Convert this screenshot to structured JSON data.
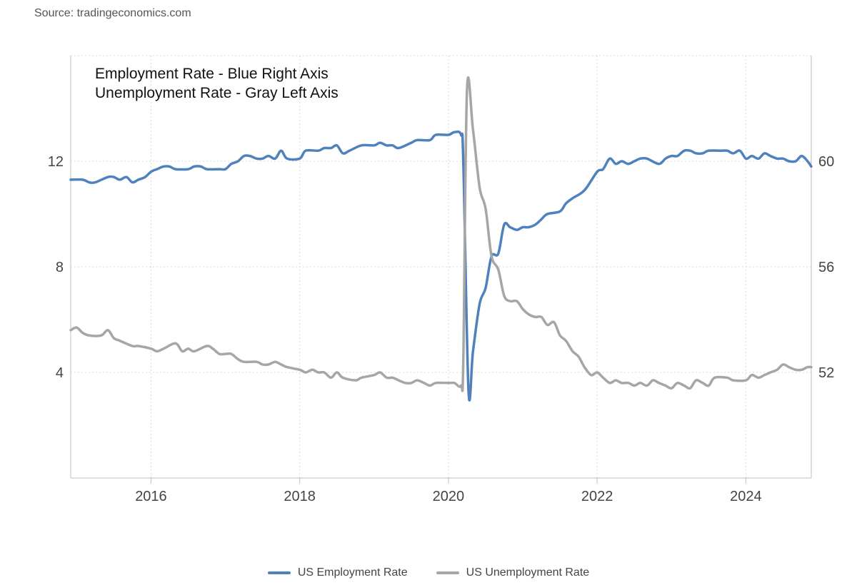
{
  "source": "Source: tradingeconomics.com",
  "colors": {
    "employment": "#4f81bd",
    "unemployment": "#a6a6a6",
    "grid": "#d9d9d9",
    "axis": "#bfbfbf"
  },
  "chart_data": {
    "type": "line",
    "annotations": [
      "Employment Rate - Blue Right Axis",
      "Unemployment Rate - Gray Left Axis"
    ],
    "x_ticks": [
      "2016",
      "2018",
      "2020",
      "2022",
      "2024"
    ],
    "x_range": [
      2014.92,
      2024.88
    ],
    "left_axis": {
      "ticks": [
        "4",
        "8",
        "12"
      ],
      "range": [
        0,
        16
      ]
    },
    "right_axis": {
      "ticks": [
        "52",
        "56",
        "60"
      ],
      "range": [
        48,
        64
      ]
    },
    "grid": true,
    "legend_position": "bottom",
    "series": [
      {
        "name": "US Employment Rate",
        "axis": "right",
        "color": "#4f81bd",
        "points": [
          [
            2014.92,
            59.3
          ],
          [
            2015.08,
            59.3
          ],
          [
            2015.17,
            59.2
          ],
          [
            2015.25,
            59.2
          ],
          [
            2015.42,
            59.4
          ],
          [
            2015.5,
            59.4
          ],
          [
            2015.58,
            59.3
          ],
          [
            2015.67,
            59.4
          ],
          [
            2015.75,
            59.2
          ],
          [
            2015.83,
            59.3
          ],
          [
            2015.92,
            59.4
          ],
          [
            2016.0,
            59.6
          ],
          [
            2016.08,
            59.7
          ],
          [
            2016.17,
            59.8
          ],
          [
            2016.25,
            59.8
          ],
          [
            2016.33,
            59.7
          ],
          [
            2016.5,
            59.7
          ],
          [
            2016.58,
            59.8
          ],
          [
            2016.67,
            59.8
          ],
          [
            2016.75,
            59.7
          ],
          [
            2016.92,
            59.7
          ],
          [
            2017.0,
            59.7
          ],
          [
            2017.08,
            59.9
          ],
          [
            2017.17,
            60.0
          ],
          [
            2017.25,
            60.2
          ],
          [
            2017.33,
            60.2
          ],
          [
            2017.42,
            60.1
          ],
          [
            2017.5,
            60.1
          ],
          [
            2017.58,
            60.2
          ],
          [
            2017.67,
            60.1
          ],
          [
            2017.75,
            60.4
          ],
          [
            2017.83,
            60.1
          ],
          [
            2018.0,
            60.1
          ],
          [
            2018.08,
            60.4
          ],
          [
            2018.25,
            60.4
          ],
          [
            2018.33,
            60.5
          ],
          [
            2018.42,
            60.5
          ],
          [
            2018.5,
            60.6
          ],
          [
            2018.58,
            60.3
          ],
          [
            2018.67,
            60.4
          ],
          [
            2018.83,
            60.6
          ],
          [
            2019.0,
            60.6
          ],
          [
            2019.08,
            60.7
          ],
          [
            2019.17,
            60.6
          ],
          [
            2019.25,
            60.6
          ],
          [
            2019.33,
            60.5
          ],
          [
            2019.5,
            60.7
          ],
          [
            2019.58,
            60.8
          ],
          [
            2019.75,
            60.8
          ],
          [
            2019.83,
            61.0
          ],
          [
            2020.0,
            61.0
          ],
          [
            2020.08,
            61.1
          ],
          [
            2020.17,
            61.0
          ],
          [
            2020.2,
            60.0
          ],
          [
            2020.27,
            51.3
          ],
          [
            2020.33,
            52.8
          ],
          [
            2020.42,
            54.6
          ],
          [
            2020.5,
            55.2
          ],
          [
            2020.58,
            56.4
          ],
          [
            2020.67,
            56.5
          ],
          [
            2020.75,
            57.6
          ],
          [
            2020.83,
            57.5
          ],
          [
            2020.92,
            57.4
          ],
          [
            2021.0,
            57.5
          ],
          [
            2021.08,
            57.5
          ],
          [
            2021.17,
            57.6
          ],
          [
            2021.25,
            57.8
          ],
          [
            2021.33,
            58.0
          ],
          [
            2021.5,
            58.1
          ],
          [
            2021.58,
            58.4
          ],
          [
            2021.67,
            58.6
          ],
          [
            2021.83,
            58.9
          ],
          [
            2022.0,
            59.6
          ],
          [
            2022.08,
            59.7
          ],
          [
            2022.17,
            60.1
          ],
          [
            2022.25,
            59.9
          ],
          [
            2022.33,
            60.0
          ],
          [
            2022.42,
            59.9
          ],
          [
            2022.5,
            60.0
          ],
          [
            2022.58,
            60.1
          ],
          [
            2022.67,
            60.1
          ],
          [
            2022.83,
            59.9
          ],
          [
            2022.92,
            60.1
          ],
          [
            2023.0,
            60.2
          ],
          [
            2023.08,
            60.2
          ],
          [
            2023.17,
            60.4
          ],
          [
            2023.25,
            60.4
          ],
          [
            2023.33,
            60.3
          ],
          [
            2023.42,
            60.3
          ],
          [
            2023.5,
            60.4
          ],
          [
            2023.67,
            60.4
          ],
          [
            2023.75,
            60.4
          ],
          [
            2023.83,
            60.3
          ],
          [
            2023.92,
            60.4
          ],
          [
            2024.0,
            60.1
          ],
          [
            2024.08,
            60.2
          ],
          [
            2024.17,
            60.1
          ],
          [
            2024.25,
            60.3
          ],
          [
            2024.33,
            60.2
          ],
          [
            2024.42,
            60.1
          ],
          [
            2024.5,
            60.1
          ],
          [
            2024.58,
            60.0
          ],
          [
            2024.67,
            60.0
          ],
          [
            2024.75,
            60.2
          ],
          [
            2024.83,
            60.0
          ],
          [
            2024.88,
            59.8
          ]
        ]
      },
      {
        "name": "US Unemployment Rate",
        "axis": "left",
        "color": "#a6a6a6",
        "points": [
          [
            2014.92,
            5.6
          ],
          [
            2015.0,
            5.7
          ],
          [
            2015.08,
            5.5
          ],
          [
            2015.17,
            5.4
          ],
          [
            2015.33,
            5.4
          ],
          [
            2015.42,
            5.6
          ],
          [
            2015.5,
            5.3
          ],
          [
            2015.58,
            5.2
          ],
          [
            2015.75,
            5.0
          ],
          [
            2015.83,
            5.0
          ],
          [
            2016.0,
            4.9
          ],
          [
            2016.08,
            4.8
          ],
          [
            2016.17,
            4.9
          ],
          [
            2016.33,
            5.1
          ],
          [
            2016.42,
            4.8
          ],
          [
            2016.5,
            4.9
          ],
          [
            2016.58,
            4.8
          ],
          [
            2016.75,
            5.0
          ],
          [
            2016.83,
            4.9
          ],
          [
            2016.92,
            4.7
          ],
          [
            2017.0,
            4.7
          ],
          [
            2017.08,
            4.7
          ],
          [
            2017.17,
            4.5
          ],
          [
            2017.25,
            4.4
          ],
          [
            2017.42,
            4.4
          ],
          [
            2017.5,
            4.3
          ],
          [
            2017.58,
            4.3
          ],
          [
            2017.67,
            4.4
          ],
          [
            2017.75,
            4.3
          ],
          [
            2017.83,
            4.2
          ],
          [
            2018.0,
            4.1
          ],
          [
            2018.08,
            4.0
          ],
          [
            2018.17,
            4.1
          ],
          [
            2018.25,
            4.0
          ],
          [
            2018.33,
            4.0
          ],
          [
            2018.42,
            3.8
          ],
          [
            2018.5,
            4.0
          ],
          [
            2018.58,
            3.8
          ],
          [
            2018.75,
            3.7
          ],
          [
            2018.83,
            3.8
          ],
          [
            2019.0,
            3.9
          ],
          [
            2019.08,
            4.0
          ],
          [
            2019.17,
            3.8
          ],
          [
            2019.25,
            3.8
          ],
          [
            2019.33,
            3.7
          ],
          [
            2019.42,
            3.6
          ],
          [
            2019.5,
            3.6
          ],
          [
            2019.58,
            3.7
          ],
          [
            2019.67,
            3.6
          ],
          [
            2019.75,
            3.5
          ],
          [
            2019.83,
            3.6
          ],
          [
            2020.0,
            3.6
          ],
          [
            2020.08,
            3.6
          ],
          [
            2020.17,
            3.5
          ],
          [
            2020.2,
            4.4
          ],
          [
            2020.25,
            14.7
          ],
          [
            2020.33,
            13.2
          ],
          [
            2020.42,
            11.0
          ],
          [
            2020.5,
            10.2
          ],
          [
            2020.58,
            8.4
          ],
          [
            2020.67,
            7.9
          ],
          [
            2020.75,
            6.9
          ],
          [
            2020.83,
            6.7
          ],
          [
            2020.92,
            6.7
          ],
          [
            2021.0,
            6.4
          ],
          [
            2021.08,
            6.2
          ],
          [
            2021.17,
            6.1
          ],
          [
            2021.25,
            6.1
          ],
          [
            2021.33,
            5.8
          ],
          [
            2021.42,
            5.9
          ],
          [
            2021.5,
            5.4
          ],
          [
            2021.58,
            5.2
          ],
          [
            2021.67,
            4.8
          ],
          [
            2021.75,
            4.6
          ],
          [
            2021.83,
            4.2
          ],
          [
            2021.92,
            3.9
          ],
          [
            2022.0,
            4.0
          ],
          [
            2022.08,
            3.8
          ],
          [
            2022.17,
            3.6
          ],
          [
            2022.25,
            3.7
          ],
          [
            2022.33,
            3.6
          ],
          [
            2022.42,
            3.6
          ],
          [
            2022.5,
            3.5
          ],
          [
            2022.58,
            3.6
          ],
          [
            2022.67,
            3.5
          ],
          [
            2022.75,
            3.7
          ],
          [
            2022.83,
            3.6
          ],
          [
            2022.92,
            3.5
          ],
          [
            2023.0,
            3.4
          ],
          [
            2023.08,
            3.6
          ],
          [
            2023.17,
            3.5
          ],
          [
            2023.25,
            3.4
          ],
          [
            2023.33,
            3.7
          ],
          [
            2023.42,
            3.6
          ],
          [
            2023.5,
            3.5
          ],
          [
            2023.58,
            3.8
          ],
          [
            2023.75,
            3.8
          ],
          [
            2023.83,
            3.7
          ],
          [
            2024.0,
            3.7
          ],
          [
            2024.08,
            3.9
          ],
          [
            2024.17,
            3.8
          ],
          [
            2024.25,
            3.9
          ],
          [
            2024.33,
            4.0
          ],
          [
            2024.42,
            4.1
          ],
          [
            2024.5,
            4.3
          ],
          [
            2024.58,
            4.2
          ],
          [
            2024.67,
            4.1
          ],
          [
            2024.75,
            4.1
          ],
          [
            2024.83,
            4.2
          ],
          [
            2024.88,
            4.2
          ]
        ]
      }
    ]
  }
}
